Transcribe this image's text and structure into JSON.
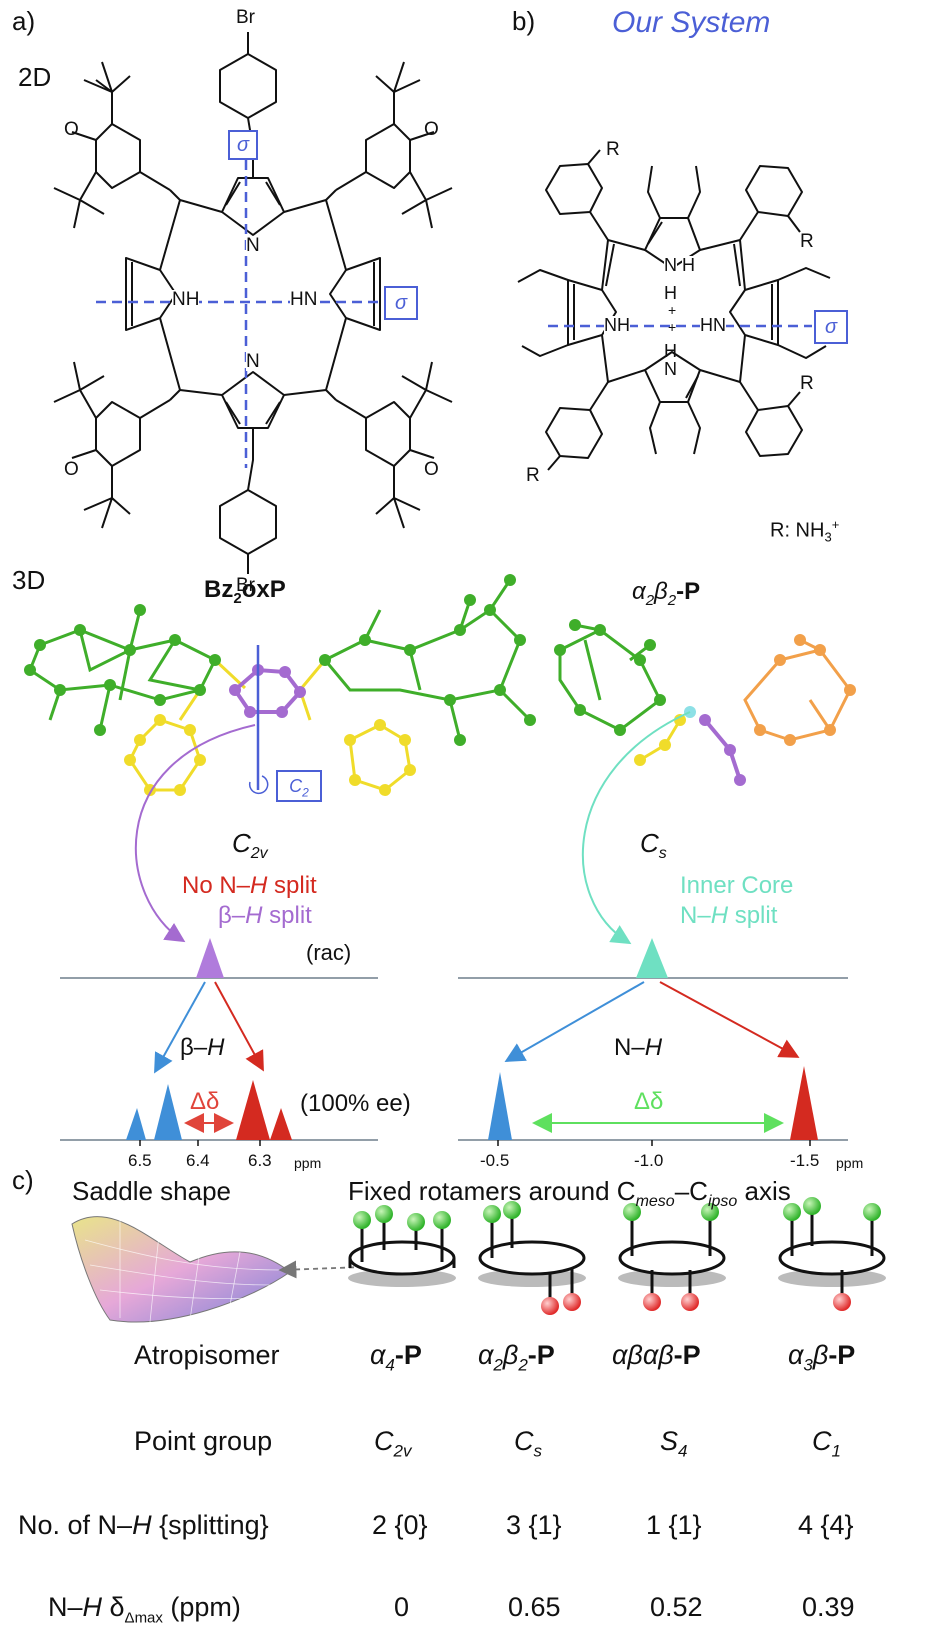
{
  "panels": {
    "a": "a)",
    "b": "b)",
    "c": "c)",
    "b_title": "Our System",
    "label_2d": "2D",
    "label_3d": "3D"
  },
  "structure_a": {
    "br_top": "Br",
    "br_bottom": "Br",
    "o_tl": "O",
    "o_tr": "O",
    "o_bl": "O",
    "o_br": "O",
    "n_top": "N",
    "n_bottom": "N",
    "nh_left": "NH",
    "nh_right": "HN",
    "sigma": "σ"
  },
  "structure_b": {
    "r_tl": "R",
    "r_tr": "R",
    "r_br": "R",
    "r_bl": "R",
    "nh_top": "N",
    "h_top": "H",
    "h_top2": "H",
    "plus1": "+",
    "plus2": "+",
    "nh_left": "NH",
    "hn_right": "HN",
    "h_bottom": "H",
    "n_bottom": "N",
    "sigma": "σ",
    "r_def": "R: NH",
    "r_sub": "3",
    "r_sup": "+"
  },
  "models": {
    "left_name_main": "Bz",
    "left_name_sub": "2",
    "left_name_end": "oxP",
    "left_symmetry_main": "C",
    "left_symmetry_sub": "2v",
    "c2_main": "C",
    "c2_sub": "2",
    "right_name_a": "α",
    "right_name_a_sub": "2",
    "right_name_b": "β",
    "right_name_b_sub": "2",
    "right_name_end": "-P",
    "right_symmetry_main": "C",
    "right_symmetry_sub": "s"
  },
  "nmr_left": {
    "note1": "No N–",
    "note1_h": "H",
    "note1_end": " split",
    "note2": "β–",
    "note2_h": "H",
    "note2_end": " split",
    "rac": "(rac)",
    "peak_label": "β–",
    "peak_label_h": "H",
    "delta": "Δδ",
    "ee": "(100% ee)",
    "ticks": [
      "6.5",
      "6.4",
      "6.3"
    ],
    "unit": "ppm"
  },
  "nmr_right": {
    "note1": "Inner Core",
    "note2": "N–",
    "note2_h": "H",
    "note2_end": " split",
    "peak_label": "N–",
    "peak_label_h": "H",
    "delta": "Δδ",
    "ticks": [
      "-0.5",
      "-1.0",
      "-1.5"
    ],
    "unit": "ppm"
  },
  "panel_c": {
    "saddle_label": "Saddle shape",
    "rotamer_label_a": "Fixed rotamers around C",
    "rotamer_sub1": "meso",
    "rotamer_dash": "–C",
    "rotamer_sub2": "ipso",
    "rotamer_end": " axis",
    "row_labels": {
      "atropisomer": "Atropisomer",
      "point_group": "Point group",
      "nh_a": "No. of N–",
      "nh_h": "H",
      "nh_b": " {splitting}",
      "delta_a": "N–",
      "delta_h": "H",
      "delta_b": " δ",
      "delta_sub": "Δmax",
      "delta_c": " (ppm)"
    },
    "columns": [
      {
        "iso_greek": "α",
        "iso_sub": "4",
        "iso_greek2": "",
        "iso_sub2": "",
        "iso_end": "-P",
        "pg": "C",
        "pg_sub": "2v",
        "nh": "2 {0}",
        "delta": "0"
      },
      {
        "iso_greek": "α",
        "iso_sub": "2",
        "iso_greek2": "β",
        "iso_sub2": "2",
        "iso_end": "-P",
        "pg": "C",
        "pg_sub": "s",
        "nh": "3 {1}",
        "delta": "0.65"
      },
      {
        "iso_greek": "αβαβ",
        "iso_sub": "",
        "iso_greek2": "",
        "iso_sub2": "",
        "iso_end": "-P",
        "pg": "S",
        "pg_sub": "4",
        "nh": "1 {1}",
        "delta": "0.52"
      },
      {
        "iso_greek": "α",
        "iso_sub": "3",
        "iso_greek2": "β",
        "iso_sub2": "",
        "iso_end": "-P",
        "pg": "C",
        "pg_sub": "1",
        "nh": "4 {4}",
        "delta": "0.39"
      }
    ]
  },
  "colors": {
    "blue": "#4b5fd6",
    "green": "#3fae2a",
    "yellow": "#f0dc2a",
    "purple": "#a46bd0",
    "orange": "#f2a04a",
    "red": "#d42a20",
    "lightblue": "#3f8fd8",
    "teal": "#6fe0c2"
  }
}
